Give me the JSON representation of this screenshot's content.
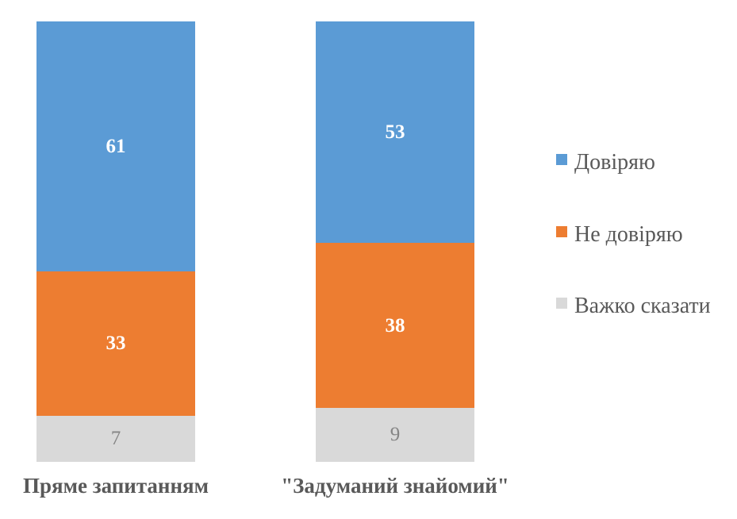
{
  "chart_data": {
    "type": "bar",
    "subtype": "stacked_column",
    "title": "",
    "categories": [
      "Пряме запитанням",
      "\"Задуманий знайомий\""
    ],
    "series": [
      {
        "name": "Довіряю",
        "color": "#5B9BD5",
        "values": [
          61,
          53
        ],
        "label_color": "#FFFFFF",
        "label_weight": "bold"
      },
      {
        "name": "Не довіряю",
        "color": "#ED7D31",
        "values": [
          33,
          38
        ],
        "label_color": "#FFFFFF",
        "label_weight": "bold"
      },
      {
        "name": "Важко сказати",
        "color": "#D9D9D9",
        "values": [
          7,
          9
        ],
        "label_color": "#858585",
        "label_weight": "normal"
      }
    ],
    "legend_position": "right",
    "data_labels": true,
    "grid": false,
    "x_axis_visible": false,
    "y_axis_visible": false,
    "background": "#FFFFFF",
    "text_color": "#595959"
  }
}
